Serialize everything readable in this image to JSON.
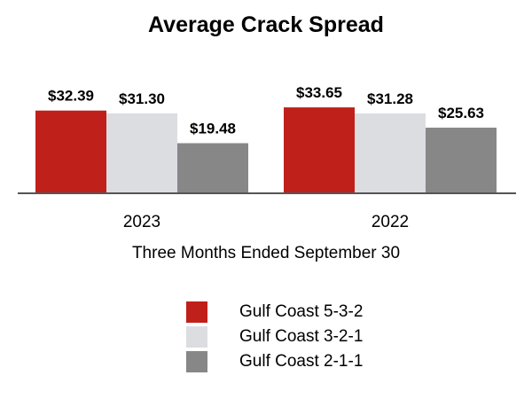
{
  "chart_data": {
    "type": "bar",
    "title": "Average Crack Spread",
    "xlabel": "Three Months Ended September 30",
    "ylabel": "",
    "categories": [
      "2023",
      "2022"
    ],
    "series": [
      {
        "name": "Gulf Coast 5-3-2",
        "values": [
          32.39,
          33.65
        ],
        "labels": [
          "$32.39",
          "$33.65"
        ],
        "color": "#c0201a"
      },
      {
        "name": "Gulf Coast 3-2-1",
        "values": [
          31.3,
          31.28
        ],
        "labels": [
          "$31.30",
          "$31.28"
        ],
        "color": "#dcdde1"
      },
      {
        "name": "Gulf Coast 2-1-1",
        "values": [
          19.48,
          25.63
        ],
        "labels": [
          "$19.48",
          "$25.63"
        ],
        "color": "#878787"
      }
    ],
    "ylim": [
      0,
      40
    ],
    "grid": false,
    "legend_position": "bottom"
  }
}
